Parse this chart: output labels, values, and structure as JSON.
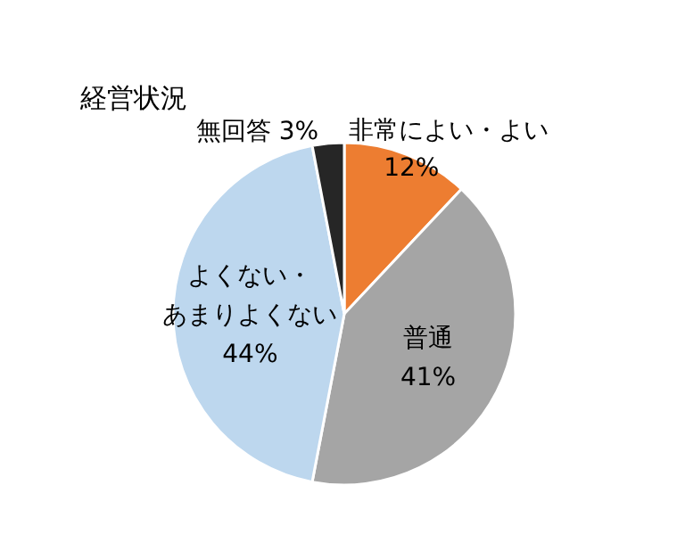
{
  "chart_data": {
    "type": "pie",
    "title": "経営状況",
    "categories": [
      "非常によい・よい",
      "普通",
      "よくない・あまりよくない",
      "無回答"
    ],
    "values": [
      12,
      41,
      44,
      3
    ],
    "colors": [
      "#ed7d31",
      "#a5a5a5",
      "#bdd7ee",
      "#262626"
    ],
    "value_labels": [
      "12%",
      "41%",
      "44%",
      "3%"
    ]
  }
}
